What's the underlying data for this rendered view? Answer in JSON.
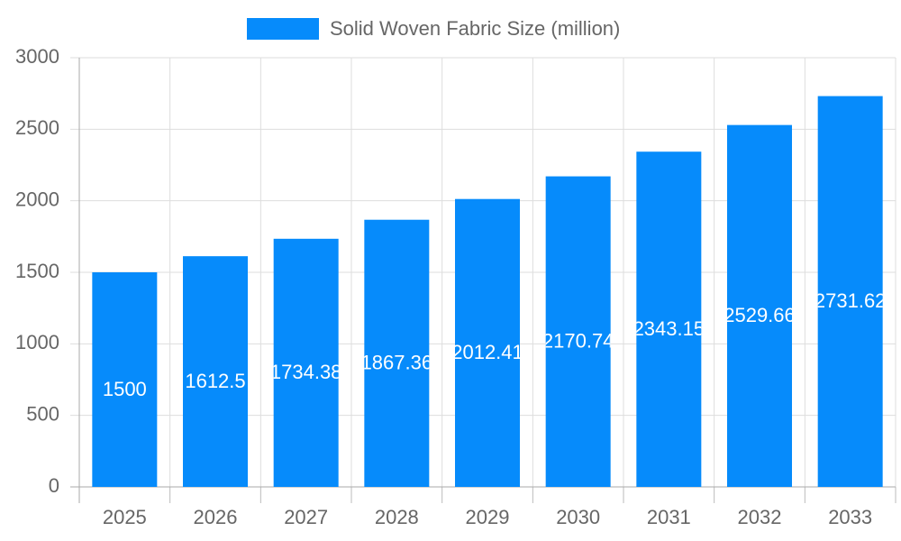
{
  "chart_data": {
    "type": "bar",
    "categories": [
      "2025",
      "2026",
      "2027",
      "2028",
      "2029",
      "2030",
      "2031",
      "2032",
      "2033"
    ],
    "series": [
      {
        "name": "Solid Woven Fabric Size (million)",
        "color": "#068bfb",
        "values": [
          1500,
          1612.5,
          1734.38,
          1867.36,
          2012.41,
          2170.74,
          2343.15,
          2529.66,
          2731.62
        ]
      }
    ],
    "ylim": [
      0,
      3000
    ],
    "yticks": [
      0,
      500,
      1000,
      1500,
      2000,
      2500,
      3000
    ],
    "grid": true,
    "legend": "top"
  }
}
